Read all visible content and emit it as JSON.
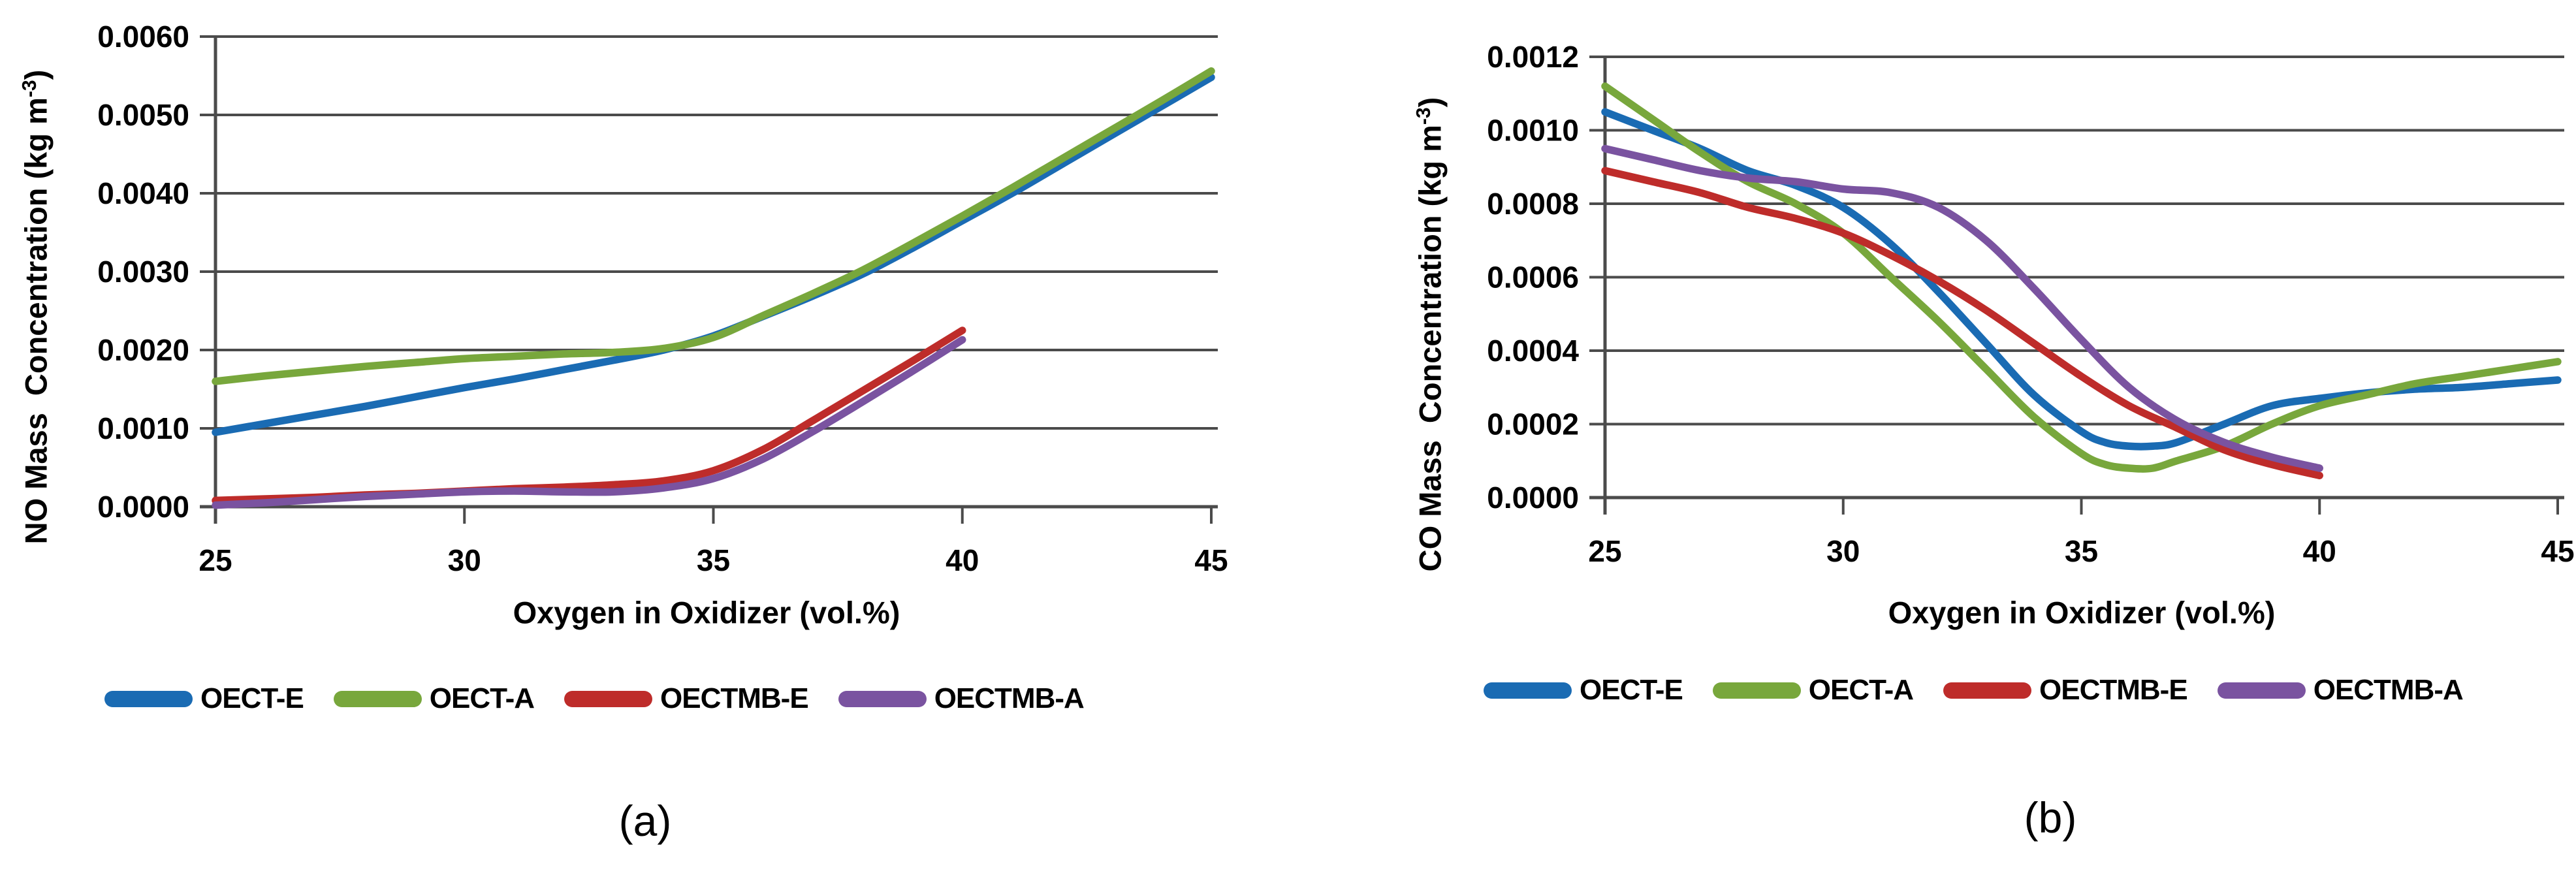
{
  "figure": {
    "caption_a": "(a)",
    "caption_b": "(b)"
  },
  "chart_a": {
    "ylabel_prefix": "NO Mass  Concentration (kg m",
    "ylabel_sup": "-3",
    "ylabel_suffix": ")",
    "xlabel": "Oxygen in Oxidizer (vol.%)",
    "chart_data": {
      "type": "line",
      "title": "",
      "xlabel": "Oxygen in Oxidizer (vol.%)",
      "ylabel": "NO Mass Concentration (kg m-3)",
      "xlim": [
        25,
        45
      ],
      "ylim": [
        0,
        0.006
      ],
      "grid": true,
      "legend_position": "bottom",
      "x_ticks": [
        {
          "value": 25,
          "label": "25"
        },
        {
          "value": 30,
          "label": "30"
        },
        {
          "value": 35,
          "label": "35"
        },
        {
          "value": 40,
          "label": "40"
        },
        {
          "value": 45,
          "label": "45"
        }
      ],
      "y_ticks": [
        {
          "value": 0.0,
          "label": "0.0000"
        },
        {
          "value": 0.001,
          "label": "0.0010"
        },
        {
          "value": 0.002,
          "label": "0.0020"
        },
        {
          "value": 0.003,
          "label": "0.0030"
        },
        {
          "value": 0.004,
          "label": "0.0040"
        },
        {
          "value": 0.005,
          "label": "0.0050"
        },
        {
          "value": 0.006,
          "label": "0.0060"
        }
      ],
      "series": [
        {
          "name": "OECT-E",
          "color": "#1A6BB3",
          "x": [
            25,
            26,
            27,
            28,
            29,
            30,
            31,
            32,
            33,
            34,
            35,
            36,
            37,
            38,
            39,
            40,
            41,
            42,
            43,
            44,
            45
          ],
          "y": [
            0.00095,
            0.00106,
            0.00117,
            0.00128,
            0.0014,
            0.00152,
            0.00163,
            0.00175,
            0.00187,
            0.002,
            0.00218,
            0.00243,
            0.00269,
            0.00297,
            0.0033,
            0.00365,
            0.004,
            0.00437,
            0.00474,
            0.00511,
            0.00548
          ]
        },
        {
          "name": "OECT-A",
          "color": "#78A73C",
          "x": [
            25,
            26,
            27,
            28,
            29,
            30,
            31,
            32,
            33,
            34,
            35,
            36,
            37,
            38,
            39,
            40,
            41,
            42,
            43,
            44,
            45
          ],
          "y": [
            0.0016,
            0.00167,
            0.00173,
            0.00179,
            0.00184,
            0.00189,
            0.00192,
            0.00195,
            0.00197,
            0.00202,
            0.00216,
            0.00244,
            0.00272,
            0.00302,
            0.00336,
            0.00371,
            0.00407,
            0.00444,
            0.00481,
            0.00518,
            0.00556
          ]
        },
        {
          "name": "OECTMB-E",
          "color": "#BE2C2A",
          "x": [
            25,
            26,
            27,
            28,
            29,
            30,
            31,
            32,
            33,
            34,
            35,
            36,
            37,
            38,
            39,
            40
          ],
          "y": [
            8e-05,
            0.0001,
            0.00012,
            0.00015,
            0.00017,
            0.0002,
            0.00023,
            0.00025,
            0.00028,
            0.00033,
            0.00046,
            0.00073,
            0.0011,
            0.00148,
            0.00186,
            0.00225
          ]
        },
        {
          "name": "OECTMB-A",
          "color": "#7A53A0",
          "x": [
            25,
            26,
            27,
            28,
            29,
            30,
            31,
            32,
            33,
            34,
            35,
            36,
            37,
            38,
            39,
            40
          ],
          "y": [
            2e-05,
            5e-05,
            9e-05,
            0.00013,
            0.00016,
            0.00019,
            0.0002,
            0.00019,
            0.00019,
            0.00024,
            0.00036,
            0.00061,
            0.00096,
            0.00134,
            0.00173,
            0.00213
          ]
        }
      ]
    }
  },
  "chart_b": {
    "ylabel_prefix": "CO Mass  Concentration (kg m",
    "ylabel_sup": "-3",
    "ylabel_suffix": ")",
    "xlabel": "Oxygen in Oxidizer (vol.%)",
    "chart_data": {
      "type": "line",
      "title": "",
      "xlabel": "Oxygen in Oxidizer (vol.%)",
      "ylabel": "CO Mass Concentration (kg m-3)",
      "xlim": [
        25,
        45
      ],
      "ylim": [
        0,
        0.0012
      ],
      "grid": true,
      "legend_position": "bottom",
      "x_ticks": [
        {
          "value": 25,
          "label": "25"
        },
        {
          "value": 30,
          "label": "30"
        },
        {
          "value": 35,
          "label": "35"
        },
        {
          "value": 40,
          "label": "40"
        },
        {
          "value": 45,
          "label": "45"
        }
      ],
      "y_ticks": [
        {
          "value": 0.0,
          "label": "0.0000"
        },
        {
          "value": 0.0002,
          "label": "0.0002"
        },
        {
          "value": 0.0004,
          "label": "0.0004"
        },
        {
          "value": 0.0006,
          "label": "0.0006"
        },
        {
          "value": 0.0008,
          "label": "0.0008"
        },
        {
          "value": 0.001,
          "label": "0.0010"
        },
        {
          "value": 0.0012,
          "label": "0.0012"
        }
      ],
      "series": [
        {
          "name": "OECT-E",
          "color": "#1A6BB3",
          "x": [
            25,
            26,
            27,
            28,
            29,
            30,
            31,
            32,
            33,
            34,
            35,
            35.5,
            36,
            36.5,
            37,
            38,
            39,
            40,
            41,
            42,
            43,
            44,
            45
          ],
          "y": [
            0.00105,
            0.001,
            0.00095,
            0.00089,
            0.00085,
            0.00079,
            0.00069,
            0.00056,
            0.00042,
            0.00028,
            0.00018,
            0.00015,
            0.00014,
            0.00014,
            0.00015,
            0.0002,
            0.00025,
            0.00027,
            0.000285,
            0.000295,
            0.0003,
            0.00031,
            0.00032
          ]
        },
        {
          "name": "OECT-A",
          "color": "#78A73C",
          "x": [
            25,
            26,
            27,
            28,
            29,
            30,
            31,
            32,
            33,
            34,
            35,
            35.5,
            36,
            36.5,
            37,
            38,
            39,
            40,
            41,
            42,
            43,
            44,
            45
          ],
          "y": [
            0.00112,
            0.00103,
            0.00094,
            0.00086,
            0.0008,
            0.00072,
            0.0006,
            0.00048,
            0.00035,
            0.00022,
            0.00012,
            9e-05,
            8e-05,
            8e-05,
            0.0001,
            0.00014,
            0.0002,
            0.00025,
            0.00028,
            0.00031,
            0.00033,
            0.00035,
            0.00037
          ]
        },
        {
          "name": "OECTMB-E",
          "color": "#BE2C2A",
          "x": [
            25,
            26,
            27,
            28,
            29,
            30,
            31,
            32,
            33,
            34,
            35,
            36,
            37,
            38,
            39,
            40
          ],
          "y": [
            0.00089,
            0.00086,
            0.00083,
            0.00079,
            0.00076,
            0.00072,
            0.00066,
            0.00059,
            0.00051,
            0.00042,
            0.00033,
            0.00025,
            0.00019,
            0.00013,
            9e-05,
            6e-05
          ]
        },
        {
          "name": "OECTMB-A",
          "color": "#7A53A0",
          "x": [
            25,
            26,
            27,
            28,
            29,
            30,
            31,
            32,
            33,
            34,
            35,
            36,
            37,
            38,
            39,
            40
          ],
          "y": [
            0.00095,
            0.00092,
            0.00089,
            0.00087,
            0.00086,
            0.00084,
            0.00083,
            0.00079,
            0.0007,
            0.00057,
            0.00043,
            0.0003,
            0.00021,
            0.00015,
            0.00011,
            8e-05
          ]
        }
      ]
    }
  }
}
